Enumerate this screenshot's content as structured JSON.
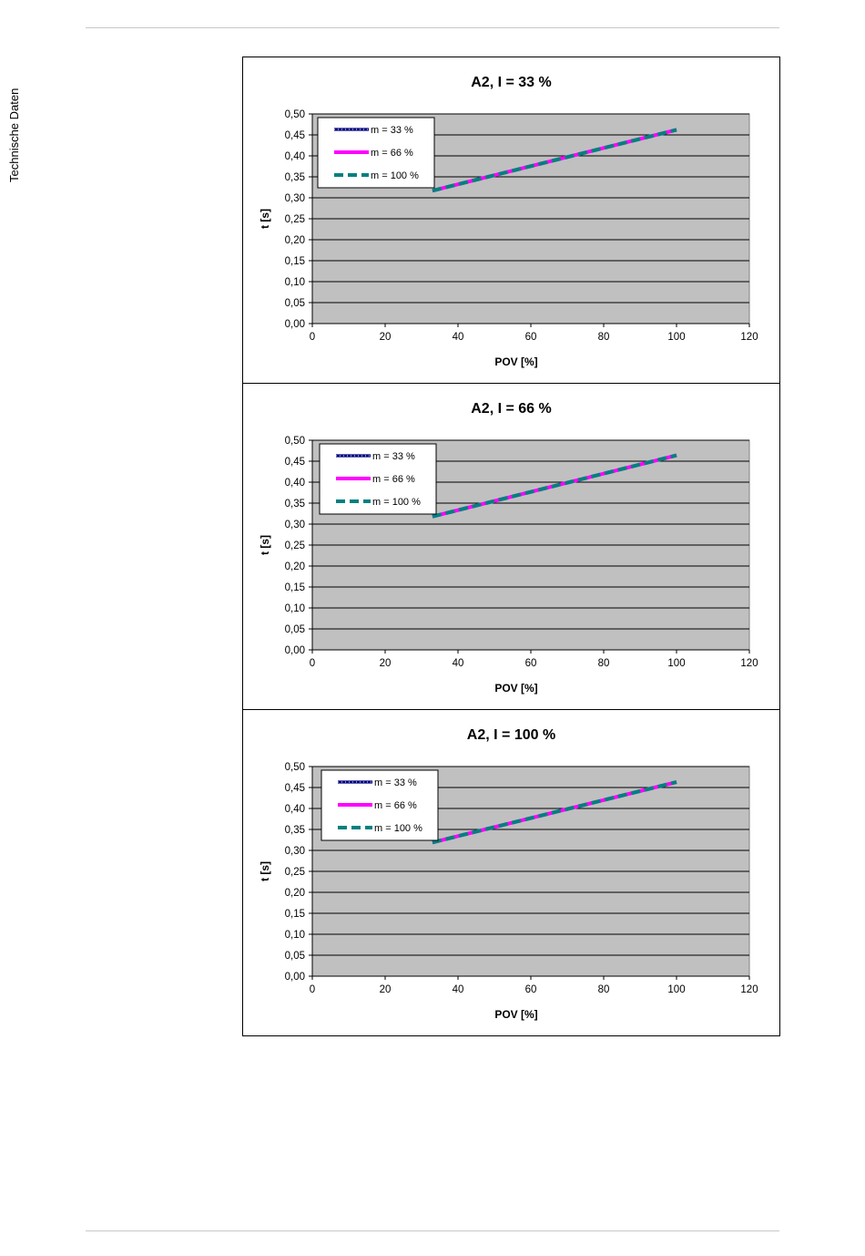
{
  "page": {
    "side_label": "Technische Daten"
  },
  "colors": {
    "plot_background": "#c0c0c0",
    "gridline": "#000000",
    "series_m33": "#000080",
    "series_m66": "#ff00ff",
    "series_m100": "#008080"
  },
  "chart_data": [
    {
      "type": "line",
      "title": "A2, I = 33 %",
      "xlabel": "POV [%]",
      "ylabel": "t [s]",
      "xlim": [
        0,
        120
      ],
      "ylim": [
        0,
        0.5
      ],
      "xticks": [
        "0",
        "20",
        "40",
        "60",
        "80",
        "100",
        "120"
      ],
      "yticks": [
        "0,00",
        "0,05",
        "0,10",
        "0,15",
        "0,20",
        "0,25",
        "0,30",
        "0,35",
        "0,40",
        "0,45",
        "0,50"
      ],
      "grid": "horizontal",
      "legend_position": "top-left",
      "series": [
        {
          "name": "m = 33 %",
          "x": [
            33,
            100
          ],
          "y": [
            0.317,
            0.462
          ]
        },
        {
          "name": "m = 66 %",
          "x": [
            33,
            100
          ],
          "y": [
            0.317,
            0.462
          ]
        },
        {
          "name": "m = 100 %",
          "x": [
            33,
            100
          ],
          "y": [
            0.317,
            0.462
          ]
        }
      ]
    },
    {
      "type": "line",
      "title": "A2, I = 66 %",
      "xlabel": "POV [%]",
      "ylabel": "t [s]",
      "xlim": [
        0,
        120
      ],
      "ylim": [
        0,
        0.5
      ],
      "xticks": [
        "0",
        "20",
        "40",
        "60",
        "80",
        "100",
        "120"
      ],
      "yticks": [
        "0,00",
        "0,05",
        "0,10",
        "0,15",
        "0,20",
        "0,25",
        "0,30",
        "0,35",
        "0,40",
        "0,45",
        "0,50"
      ],
      "grid": "horizontal",
      "legend_position": "top-left",
      "series": [
        {
          "name": "m = 33 %",
          "x": [
            33,
            100
          ],
          "y": [
            0.318,
            0.464
          ]
        },
        {
          "name": "m = 66 %",
          "x": [
            33,
            100
          ],
          "y": [
            0.318,
            0.464
          ]
        },
        {
          "name": "m = 100 %",
          "x": [
            33,
            100
          ],
          "y": [
            0.318,
            0.464
          ]
        }
      ]
    },
    {
      "type": "line",
      "title": "A2, I = 100 %",
      "xlabel": "POV [%]",
      "ylabel": "t [s]",
      "xlim": [
        0,
        120
      ],
      "ylim": [
        0,
        0.5
      ],
      "xticks": [
        "0",
        "20",
        "40",
        "60",
        "80",
        "100",
        "120"
      ],
      "yticks": [
        "0,00",
        "0,05",
        "0,10",
        "0,15",
        "0,20",
        "0,25",
        "0,30",
        "0,35",
        "0,40",
        "0,45",
        "0,50"
      ],
      "grid": "horizontal",
      "legend_position": "top-left",
      "series": [
        {
          "name": "m = 33 %",
          "x": [
            33,
            100
          ],
          "y": [
            0.319,
            0.463
          ]
        },
        {
          "name": "m = 66 %",
          "x": [
            33,
            100
          ],
          "y": [
            0.319,
            0.463
          ]
        },
        {
          "name": "m = 100 %",
          "x": [
            33,
            100
          ],
          "y": [
            0.319,
            0.463
          ]
        }
      ]
    }
  ]
}
